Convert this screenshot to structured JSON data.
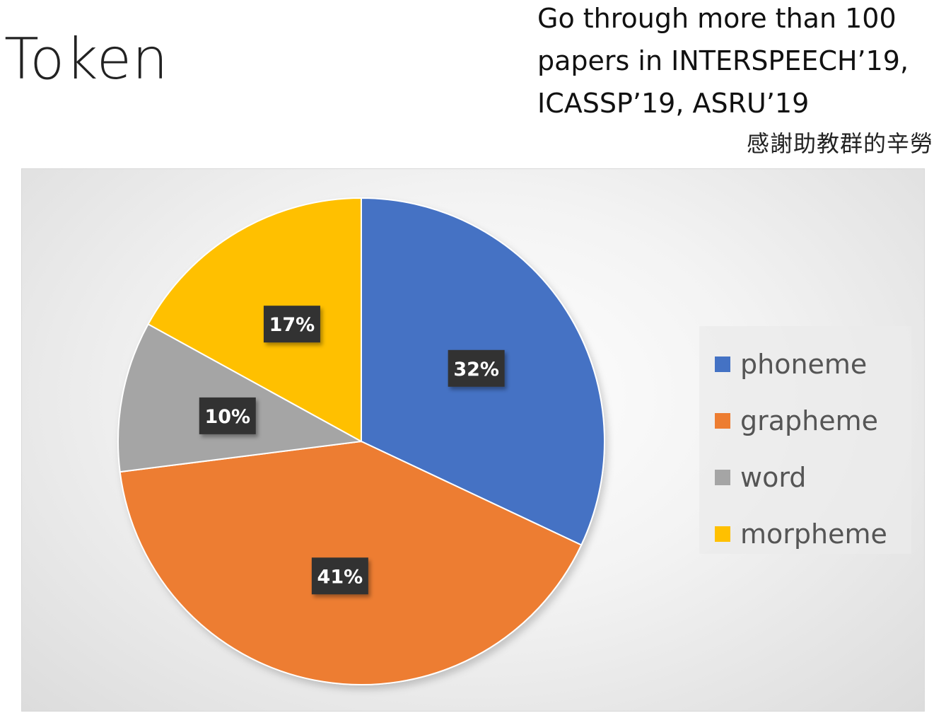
{
  "slide": {
    "title": "Token",
    "note_lines": [
      "Go through more than 100",
      "papers in INTERSPEECH’19,",
      "ICASSP’19, ASRU’19"
    ],
    "thanks": "感謝助教群的辛勞"
  },
  "chart_data": {
    "type": "pie",
    "categories": [
      "phoneme",
      "grapheme",
      "word",
      "morpheme"
    ],
    "values": [
      32,
      41,
      10,
      17
    ],
    "data_labels": [
      "32%",
      "41%",
      "10%",
      "17%"
    ],
    "colors": [
      "#4472C4",
      "#ED7D31",
      "#A5A5A5",
      "#FFC000"
    ],
    "start_angle": "12 o'clock",
    "direction": "clockwise",
    "legend_position": "right",
    "label_box_color": "#333333"
  }
}
